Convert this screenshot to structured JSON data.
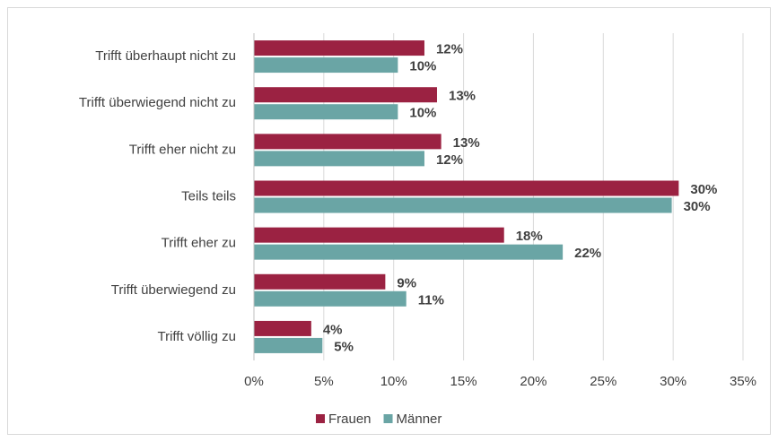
{
  "chart_data": {
    "type": "bar",
    "orientation": "horizontal",
    "categories": [
      "Trifft überhaupt nicht zu",
      "Trifft überwiegend nicht zu",
      "Trifft eher nicht zu",
      "Teils teils",
      "Trifft eher zu",
      "Trifft überwiegend zu",
      "Trifft völlig zu"
    ],
    "series": [
      {
        "name": "Frauen",
        "color": "#9b2242",
        "values": [
          12.2,
          13.1,
          13.4,
          30.4,
          17.9,
          9.4,
          4.1
        ],
        "value_labels": [
          "12%",
          "13%",
          "13%",
          "30%",
          "18%",
          "9%",
          "4%"
        ]
      },
      {
        "name": "Männer",
        "color": "#6aa5a5",
        "values": [
          10.3,
          10.3,
          12.2,
          29.9,
          22.1,
          10.9,
          4.9
        ],
        "value_labels": [
          "10%",
          "10%",
          "12%",
          "30%",
          "22%",
          "11%",
          "5%"
        ]
      }
    ],
    "xlim": [
      0,
      35
    ],
    "xticks": [
      {
        "value": 0,
        "label": "0%"
      },
      {
        "value": 5,
        "label": "5%"
      },
      {
        "value": 10,
        "label": "10%"
      },
      {
        "value": 15,
        "label": "15%"
      },
      {
        "value": 20,
        "label": "20%"
      },
      {
        "value": 25,
        "label": "25%"
      },
      {
        "value": 30,
        "label": "30%"
      },
      {
        "value": 35,
        "label": "35%"
      }
    ],
    "grid": true,
    "legend": "bottom"
  }
}
